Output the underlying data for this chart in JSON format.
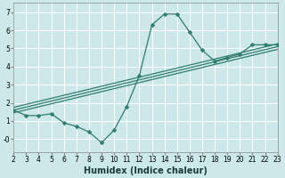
{
  "x": [
    2,
    3,
    4,
    5,
    6,
    7,
    8,
    9,
    10,
    11,
    12,
    13,
    14,
    15,
    16,
    17,
    18,
    19,
    20,
    21,
    22,
    23
  ],
  "y_main": [
    1.6,
    1.3,
    1.3,
    1.4,
    0.9,
    0.7,
    0.4,
    -0.2,
    0.5,
    1.8,
    3.5,
    6.3,
    6.9,
    6.9,
    5.9,
    4.9,
    4.3,
    4.5,
    4.7,
    5.2,
    5.2,
    5.2
  ],
  "line_color": "#2e7d6e",
  "marker": "D",
  "marker_size": 2.5,
  "background_color": "#cce8e8",
  "grid_color": "#aacccc",
  "xlabel": "Humidex (Indice chaleur)",
  "xlim": [
    2,
    23
  ],
  "ylim": [
    -0.7,
    7.5
  ],
  "yticks": [
    0,
    1,
    2,
    3,
    4,
    5,
    6,
    7
  ],
  "ytick_labels": [
    "-0",
    "1",
    "2",
    "3",
    "4",
    "5",
    "6",
    "7"
  ],
  "xticks": [
    2,
    3,
    4,
    5,
    6,
    7,
    8,
    9,
    10,
    11,
    12,
    13,
    14,
    15,
    16,
    17,
    18,
    19,
    20,
    21,
    22,
    23
  ],
  "tick_fontsize": 5.5,
  "xlabel_fontsize": 7,
  "reg_x_start": 2,
  "reg_x_end": 23,
  "reg_lines": [
    {
      "x1": 2,
      "y1": 1.75,
      "x2": 23,
      "y2": 5.25
    },
    {
      "x1": 2,
      "y1": 1.6,
      "x2": 23,
      "y2": 5.1
    },
    {
      "x1": 2,
      "y1": 1.45,
      "x2": 23,
      "y2": 4.95
    }
  ]
}
